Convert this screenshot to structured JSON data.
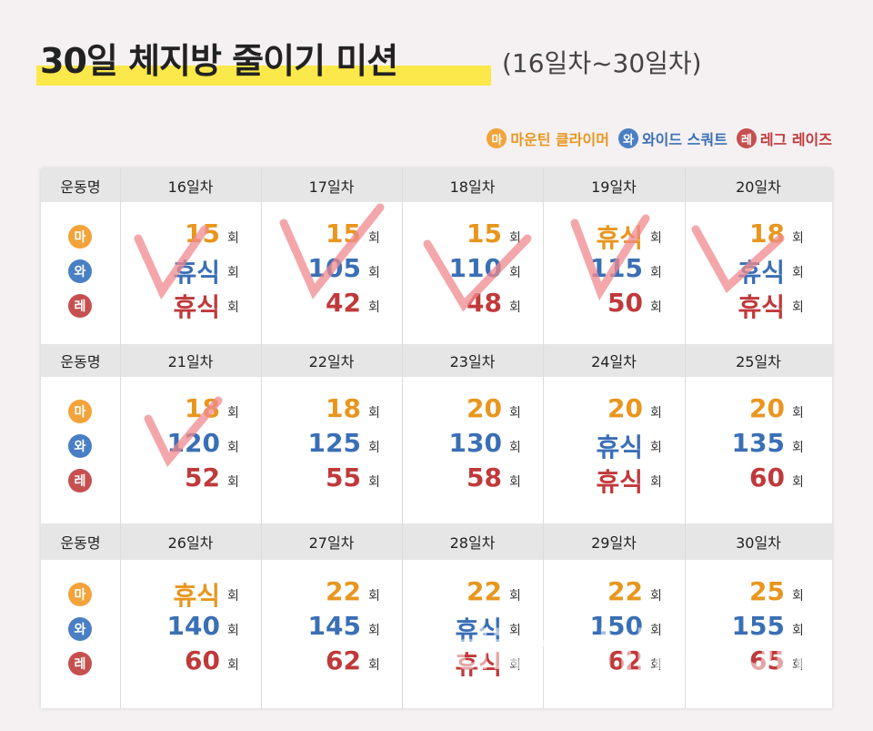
{
  "header": {
    "title": "30일 체지방 줄이기 미션",
    "subtitle": "(16일차~30일차)"
  },
  "legend": [
    {
      "badge": "마",
      "name": "마운틴 클라이머"
    },
    {
      "badge": "와",
      "name": "와이드 스쿼트"
    },
    {
      "badge": "레",
      "name": "레그 레이즈"
    }
  ],
  "table": {
    "unit": "회",
    "blocks": [
      {
        "label": "운동명",
        "days": [
          "16일차",
          "17일차",
          "18일차",
          "19일차",
          "20일차"
        ],
        "rows": [
          {
            "badge": "마",
            "values": [
              15,
              15,
              15,
              "휴식",
              18
            ]
          },
          {
            "badge": "와",
            "values": [
              "휴식",
              105,
              110,
              115,
              "휴식"
            ]
          },
          {
            "badge": "레",
            "values": [
              "휴식",
              42,
              48,
              50,
              "휴식"
            ]
          }
        ]
      },
      {
        "label": "운동명",
        "days": [
          "21일차",
          "22일차",
          "23일차",
          "24일차",
          "25일차"
        ],
        "rows": [
          {
            "badge": "마",
            "values": [
              18,
              18,
              20,
              20,
              20
            ]
          },
          {
            "badge": "와",
            "values": [
              120,
              125,
              130,
              "휴식",
              135
            ]
          },
          {
            "badge": "레",
            "values": [
              52,
              55,
              58,
              "휴식",
              60
            ]
          }
        ]
      },
      {
        "label": "운동명",
        "days": [
          "26일차",
          "27일차",
          "28일차",
          "29일차",
          "30일차"
        ],
        "rows": [
          {
            "badge": "마",
            "values": [
              "휴식",
              22,
              22,
              22,
              25
            ]
          },
          {
            "badge": "와",
            "values": [
              140,
              145,
              "휴식",
              150,
              155
            ]
          },
          {
            "badge": "레",
            "values": [
              60,
              62,
              "휴식",
              62,
              65
            ]
          }
        ]
      }
    ]
  },
  "watermark": "dietshin.com"
}
